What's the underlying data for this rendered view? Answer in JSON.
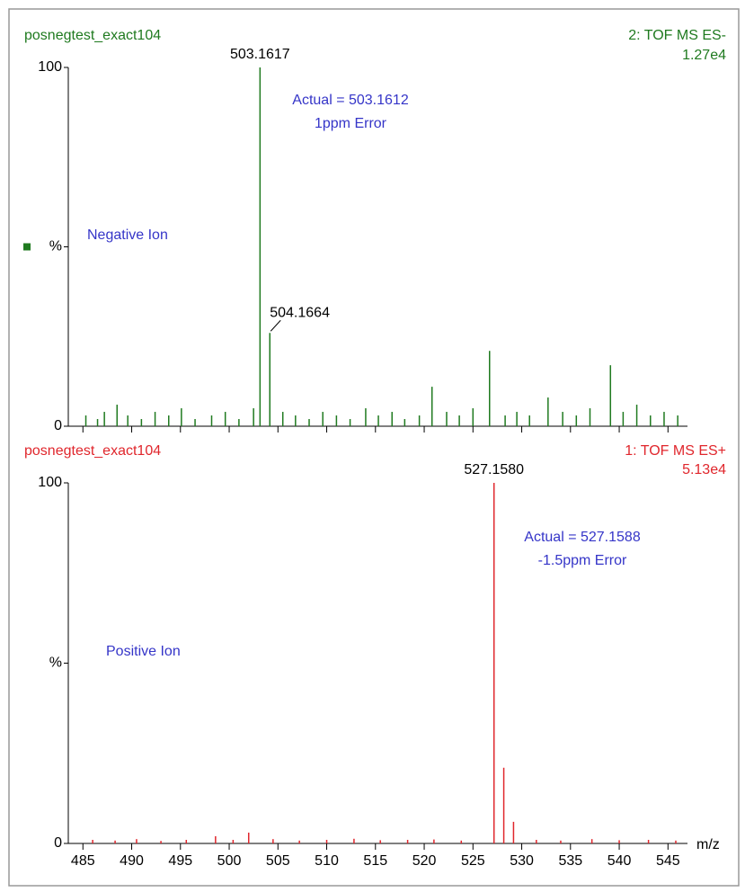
{
  "chart_data": [
    {
      "type": "spectrum",
      "title": "posnegtest_exact104",
      "function": "2: TOF MS ES-",
      "intensity": "1.27e4",
      "color": "#1f7a1f",
      "ion_label": "Negative Ion",
      "annotations": [
        "Actual = 503.1612",
        "1ppm Error"
      ],
      "xlim": [
        483.5,
        547
      ],
      "ylim": [
        0,
        100
      ],
      "yticks": [
        0,
        {
          "value": 50,
          "label": "%"
        },
        100
      ],
      "xticks": [
        485,
        490,
        495,
        500,
        505,
        510,
        515,
        520,
        525,
        530,
        535,
        540,
        545
      ],
      "labeled_peaks": [
        {
          "x": 503.1617,
          "value": 100,
          "label": "503.1617"
        },
        {
          "x": 504.1664,
          "value": 26,
          "label": "504.1664"
        }
      ],
      "x": [
        485.3,
        486.5,
        487.2,
        488.5,
        489.6,
        491.0,
        492.4,
        493.8,
        495.1,
        496.5,
        498.2,
        499.6,
        501.0,
        502.5,
        505.5,
        506.8,
        508.2,
        509.6,
        511.0,
        512.4,
        514.0,
        515.3,
        516.7,
        518.0,
        519.5,
        520.8,
        522.3,
        523.6,
        525.0,
        526.7,
        528.3,
        529.5,
        530.8,
        532.7,
        534.2,
        535.6,
        537.0,
        539.1,
        540.4,
        541.8,
        543.2,
        544.6,
        546.0
      ],
      "values": [
        3,
        2,
        4,
        6,
        3,
        2,
        4,
        3,
        5,
        2,
        3,
        4,
        2,
        5,
        4,
        3,
        2,
        4,
        3,
        2,
        5,
        3,
        4,
        2,
        3,
        11,
        4,
        3,
        5,
        21,
        3,
        4,
        3,
        8,
        4,
        3,
        5,
        17,
        4,
        6,
        3,
        4,
        3
      ]
    },
    {
      "type": "spectrum",
      "title": "posnegtest_exact104",
      "function": "1: TOF MS ES+",
      "intensity": "5.13e4",
      "color": "#e0262c",
      "ion_label": "Positive Ion",
      "annotations": [
        "Actual = 527.1588",
        "-1.5ppm Error"
      ],
      "xlim": [
        483.5,
        547
      ],
      "ylim": [
        0,
        100
      ],
      "yticks": [
        0,
        {
          "value": 50,
          "label": "%"
        },
        100
      ],
      "xticks": [
        485,
        490,
        495,
        500,
        505,
        510,
        515,
        520,
        525,
        530,
        535,
        540,
        545
      ],
      "xlabel": "m/z",
      "labeled_peaks": [
        {
          "x": 527.158,
          "value": 100,
          "label": "527.1580"
        }
      ],
      "x": [
        486.0,
        488.3,
        490.5,
        493.0,
        495.6,
        498.6,
        500.4,
        502.0,
        504.5,
        507.2,
        510.0,
        512.8,
        515.5,
        518.3,
        521.0,
        523.8,
        528.16,
        529.16,
        531.5,
        534.0,
        537.2,
        540.0,
        543.0,
        545.8
      ],
      "values": [
        1,
        0.8,
        1.2,
        0.7,
        1,
        2,
        1,
        3,
        1.2,
        0.8,
        1,
        1.3,
        0.9,
        1,
        1.1,
        0.8,
        21,
        6,
        1,
        0.8,
        1.2,
        0.9,
        1,
        0.8
      ]
    }
  ]
}
